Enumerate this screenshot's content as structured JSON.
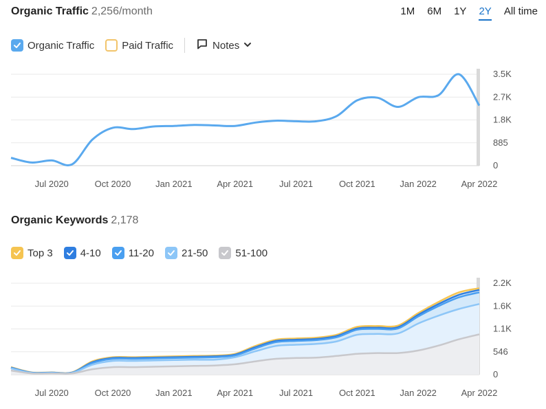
{
  "traffic": {
    "title": "Organic Traffic",
    "value": "2,256/month",
    "periods": [
      "1M",
      "6M",
      "1Y",
      "2Y",
      "All time"
    ],
    "active_period": "2Y",
    "legend": {
      "organic": "Organic Traffic",
      "paid": "Paid Traffic",
      "notes": "Notes"
    },
    "colors": {
      "organic": "#5aa9ee",
      "paid": "#f2c46b"
    }
  },
  "keywords": {
    "title": "Organic Keywords",
    "value": "2,178",
    "legend": [
      {
        "label": "Top 3",
        "color": "#f5c451"
      },
      {
        "label": "4-10",
        "color": "#2f7ee0"
      },
      {
        "label": "11-20",
        "color": "#4a9ff0"
      },
      {
        "label": "21-50",
        "color": "#8dc6f7"
      },
      {
        "label": "51-100",
        "color": "#c8c8cc"
      }
    ]
  },
  "chart_data": [
    {
      "type": "line",
      "title": "Organic Traffic",
      "x": [
        "2020-05",
        "2020-06",
        "2020-07",
        "2020-08",
        "2020-09",
        "2020-10",
        "2020-11",
        "2020-12",
        "2021-01",
        "2021-02",
        "2021-03",
        "2021-04",
        "2021-05",
        "2021-06",
        "2021-07",
        "2021-08",
        "2021-09",
        "2021-10",
        "2021-11",
        "2021-12",
        "2022-01",
        "2022-02",
        "2022-03",
        "2022-04"
      ],
      "x_tick_labels": [
        "Jul 2020",
        "Oct 2020",
        "Jan 2021",
        "Apr 2021",
        "Jul 2021",
        "Oct 2021",
        "Jan 2022",
        "Apr 2022"
      ],
      "y_ticks": [
        "0",
        "885",
        "1.8K",
        "2.7K",
        "3.5K"
      ],
      "ylim": [
        0,
        3500
      ],
      "grid": true,
      "series": [
        {
          "name": "Organic Traffic",
          "values": [
            300,
            120,
            200,
            50,
            1000,
            1450,
            1400,
            1500,
            1520,
            1560,
            1540,
            1520,
            1650,
            1720,
            1700,
            1700,
            1900,
            2500,
            2600,
            2250,
            2620,
            2700,
            3500,
            2300
          ]
        }
      ]
    },
    {
      "type": "area",
      "title": "Organic Keywords",
      "x": [
        "2020-05",
        "2020-06",
        "2020-07",
        "2020-08",
        "2020-09",
        "2020-10",
        "2020-11",
        "2020-12",
        "2021-01",
        "2021-02",
        "2021-03",
        "2021-04",
        "2021-05",
        "2021-06",
        "2021-07",
        "2021-08",
        "2021-09",
        "2021-10",
        "2021-11",
        "2021-12",
        "2022-01",
        "2022-02",
        "2022-03",
        "2022-04"
      ],
      "x_tick_labels": [
        "Jul 2020",
        "Oct 2020",
        "Jan 2021",
        "Apr 2021",
        "Jul 2021",
        "Oct 2021",
        "Jan 2022",
        "Apr 2022"
      ],
      "y_ticks": [
        "0",
        "546",
        "1.1K",
        "1.6K",
        "2.2K"
      ],
      "ylim": [
        0,
        2200
      ],
      "grid": true,
      "series": [
        {
          "name": "51-100",
          "values": [
            100,
            30,
            30,
            30,
            130,
            180,
            180,
            190,
            200,
            210,
            220,
            250,
            320,
            380,
            400,
            410,
            450,
            500,
            520,
            520,
            580,
            700,
            850,
            970
          ]
        },
        {
          "name": "21-50",
          "values": [
            150,
            40,
            40,
            40,
            240,
            330,
            330,
            340,
            350,
            360,
            360,
            420,
            560,
            690,
            720,
            740,
            800,
            960,
            980,
            990,
            1230,
            1420,
            1580,
            1700
          ]
        },
        {
          "name": "11-20",
          "values": [
            160,
            45,
            45,
            45,
            280,
            380,
            380,
            390,
            400,
            410,
            420,
            460,
            630,
            780,
            810,
            830,
            900,
            1080,
            1100,
            1110,
            1400,
            1650,
            1860,
            1980
          ]
        },
        {
          "name": "4-10",
          "values": [
            170,
            50,
            50,
            50,
            300,
            400,
            400,
            410,
            420,
            430,
            440,
            480,
            660,
            810,
            840,
            860,
            930,
            1110,
            1130,
            1140,
            1440,
            1700,
            1920,
            2040
          ]
        },
        {
          "name": "Top 3",
          "values": [
            180,
            55,
            55,
            55,
            320,
            420,
            420,
            430,
            440,
            450,
            460,
            500,
            690,
            840,
            870,
            890,
            960,
            1150,
            1170,
            1180,
            1480,
            1750,
            1980,
            2080
          ]
        }
      ]
    }
  ]
}
